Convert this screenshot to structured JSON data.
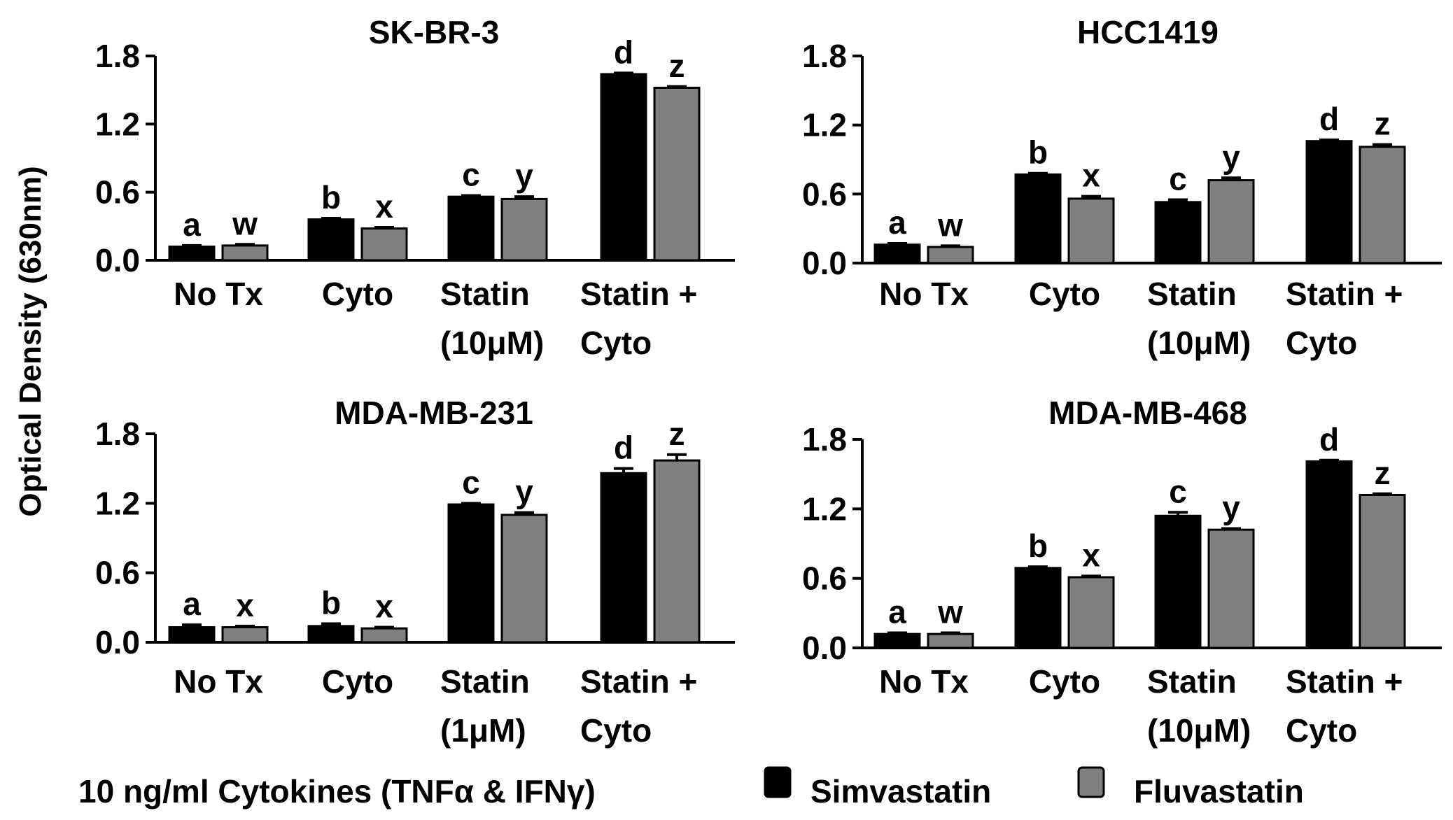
{
  "ylabel": "Optical Density (630nm)",
  "footer_label": "10 ng/ml Cytokines (TNFα & IFNγ)",
  "legend": [
    {
      "name": "Simvastatin",
      "color": "#000000"
    },
    {
      "name": "Fluvastatin",
      "color": "#808080"
    }
  ],
  "chart_data": [
    {
      "type": "bar",
      "title": "SK-BR-3",
      "ylim": [
        0,
        1.8
      ],
      "yticks": [
        "0.0",
        "0.6",
        "1.2",
        "1.8"
      ],
      "category_lines": [
        [
          "No Tx"
        ],
        [
          "Cyto"
        ],
        [
          "Statin",
          "(10μM)"
        ],
        [
          "Statin +",
          "Cyto"
        ]
      ],
      "series": [
        {
          "name": "Simvastatin",
          "values": [
            0.12,
            0.36,
            0.56,
            1.64
          ],
          "errors": [
            0.01,
            0.01,
            0.01,
            0.01
          ],
          "letters": [
            "a",
            "b",
            "c",
            "d"
          ]
        },
        {
          "name": "Fluvastatin",
          "values": [
            0.13,
            0.28,
            0.54,
            1.52
          ],
          "errors": [
            0.01,
            0.01,
            0.02,
            0.01
          ],
          "letters": [
            "w",
            "x",
            "y",
            "z"
          ]
        }
      ]
    },
    {
      "type": "bar",
      "title": "HCC1419",
      "ylim": [
        0,
        1.8
      ],
      "yticks": [
        "0.0",
        "0.6",
        "1.2",
        "1.8"
      ],
      "category_lines": [
        [
          "No Tx"
        ],
        [
          "Cyto"
        ],
        [
          "Statin",
          "(10μM)"
        ],
        [
          "Statin +",
          "Cyto"
        ]
      ],
      "series": [
        {
          "name": "Simvastatin",
          "values": [
            0.16,
            0.77,
            0.53,
            1.06
          ],
          "errors": [
            0.01,
            0.01,
            0.02,
            0.01
          ],
          "letters": [
            "a",
            "b",
            "c",
            "d"
          ]
        },
        {
          "name": "Fluvastatin",
          "values": [
            0.14,
            0.56,
            0.72,
            1.01
          ],
          "errors": [
            0.01,
            0.02,
            0.02,
            0.02
          ],
          "letters": [
            "w",
            "x",
            "y",
            "z"
          ]
        }
      ]
    },
    {
      "type": "bar",
      "title": "MDA-MB-231",
      "ylim": [
        0,
        1.8
      ],
      "yticks": [
        "0.0",
        "0.6",
        "1.2",
        "1.8"
      ],
      "category_lines": [
        [
          "No Tx"
        ],
        [
          "Cyto"
        ],
        [
          "Statin",
          "(1μM)"
        ],
        [
          "Statin +",
          "Cyto"
        ]
      ],
      "series": [
        {
          "name": "Simvastatin",
          "values": [
            0.13,
            0.14,
            1.19,
            1.46
          ],
          "errors": [
            0.02,
            0.02,
            0.01,
            0.04
          ],
          "letters": [
            "a",
            "b",
            "c",
            "d"
          ]
        },
        {
          "name": "Fluvastatin",
          "values": [
            0.13,
            0.12,
            1.1,
            1.57
          ],
          "errors": [
            0.01,
            0.01,
            0.02,
            0.05
          ],
          "letters": [
            "x",
            "x",
            "y",
            "z"
          ]
        }
      ]
    },
    {
      "type": "bar",
      "title": "MDA-MB-468",
      "ylim": [
        0,
        1.8
      ],
      "yticks": [
        "0.0",
        "0.6",
        "1.2",
        "1.8"
      ],
      "category_lines": [
        [
          "No Tx"
        ],
        [
          "Cyto"
        ],
        [
          "Statin",
          "(10μM)"
        ],
        [
          "Statin +",
          "Cyto"
        ]
      ],
      "series": [
        {
          "name": "Simvastatin",
          "values": [
            0.12,
            0.69,
            1.14,
            1.61
          ],
          "errors": [
            0.01,
            0.01,
            0.03,
            0.01
          ],
          "letters": [
            "a",
            "b",
            "c",
            "d"
          ]
        },
        {
          "name": "Fluvastatin",
          "values": [
            0.12,
            0.61,
            1.02,
            1.32
          ],
          "errors": [
            0.01,
            0.01,
            0.01,
            0.01
          ],
          "letters": [
            "w",
            "x",
            "y",
            "z"
          ]
        }
      ]
    }
  ]
}
